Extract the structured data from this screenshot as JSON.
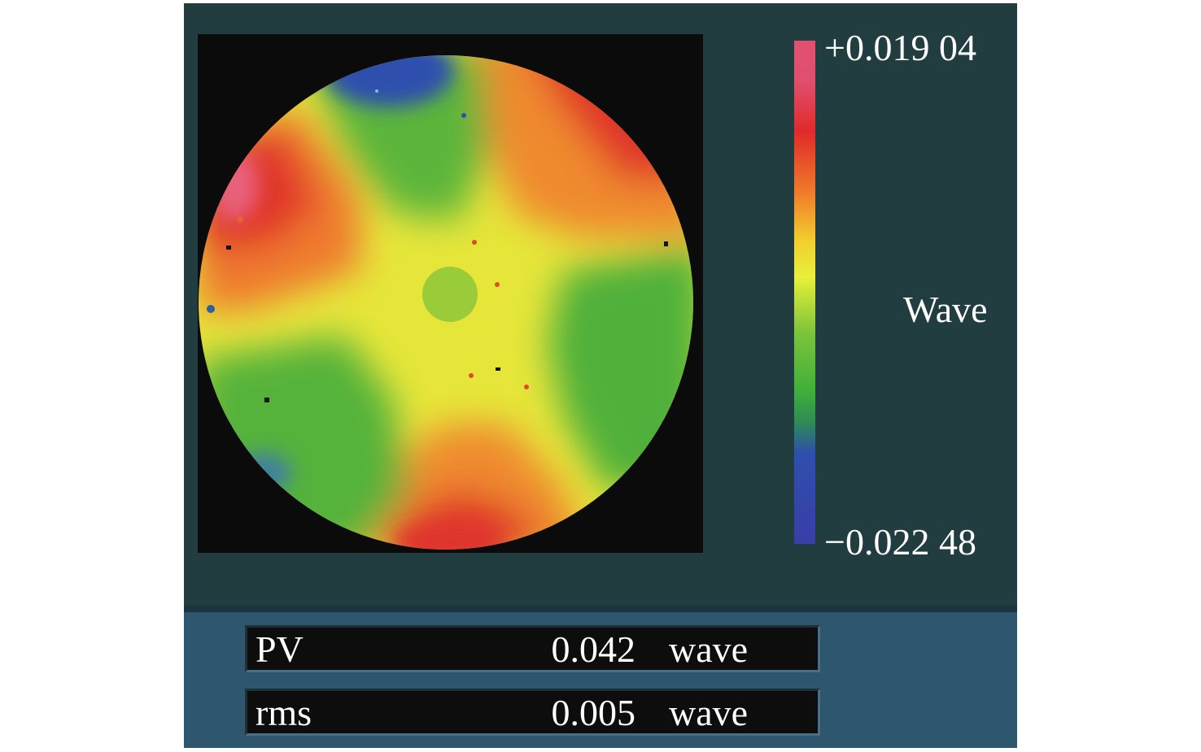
{
  "colorbar": {
    "max_label": "+0.019 04",
    "min_label": "−0.022 48",
    "unit_label": "Wave",
    "gradient_colors": [
      "#e0506e",
      "#e02a2a",
      "#f07a2a",
      "#f2d02e",
      "#e8f03a",
      "#7cc43a",
      "#3eae3a",
      "#2f8a56",
      "#2e4fae",
      "#3a3ea8"
    ]
  },
  "map": {
    "background": "#0b0b0b",
    "description_colors": {
      "red": "#e23a2a",
      "orange": "#f2902e",
      "yellow": "#e6e63a",
      "green": "#5cb83a",
      "blue": "#2f4fae",
      "pink": "#e8607a"
    }
  },
  "stats": {
    "pv": {
      "name": "PV",
      "value": "0.042",
      "unit": "wave"
    },
    "rms": {
      "name": "rms",
      "value": "0.005",
      "unit": "wave"
    }
  }
}
